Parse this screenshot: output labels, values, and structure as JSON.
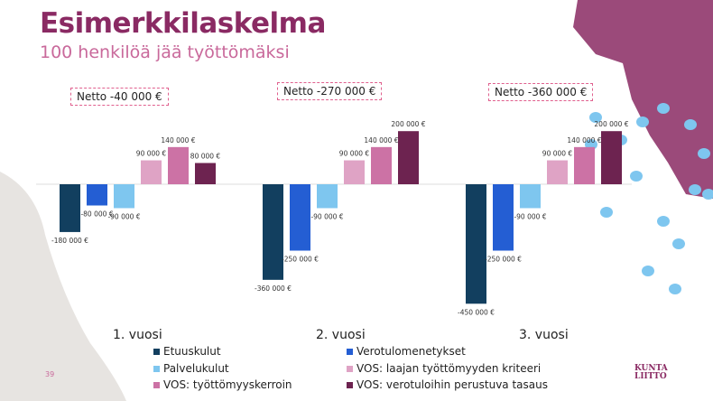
{
  "header": {
    "title": "Esimerkkilaskelma",
    "subtitle": "100 henkilöä jää työttömäksi"
  },
  "page_number": "39",
  "logo": {
    "line1": "KUNTA",
    "line2": "LIITTO"
  },
  "chart_data": {
    "type": "bar",
    "categories": [
      "1. vuosi",
      "2. vuosi",
      "3. vuosi"
    ],
    "netto": [
      "Netto -40 000 €",
      "Netto -270 000 €",
      "Netto -360 000 €"
    ],
    "series": [
      {
        "name": "Etuuskulut",
        "color": "#123f5f",
        "values": [
          -180000,
          -360000,
          -450000
        ]
      },
      {
        "name": "Verotulomenetykset",
        "color": "#245ed3",
        "values": [
          -80000,
          -250000,
          -250000
        ]
      },
      {
        "name": "Palvelukulut",
        "color": "#7ec6ef",
        "values": [
          -90000,
          -90000,
          -90000
        ]
      },
      {
        "name": "VOS: laajan työttömyyden kriteeri",
        "color": "#dfa3c5",
        "values": [
          90000,
          90000,
          90000
        ]
      },
      {
        "name": "VOS: työttömyyskerroin",
        "color": "#cc72a5",
        "values": [
          140000,
          140000,
          140000
        ]
      },
      {
        "name": "VOS: verotuloihin perustuva tasaus",
        "color": "#6d2350",
        "values": [
          80000,
          200000,
          200000
        ]
      }
    ],
    "value_labels": [
      [
        "-180 000 €",
        "-80 000 €",
        "-90 000 €",
        "90 000 €",
        "140 000 €",
        "80 000 €"
      ],
      [
        "-360 000 €",
        "-250 000 €",
        "-90 000 €",
        "90 000 €",
        "140 000 €",
        "200 000 €"
      ],
      [
        "-450 000 €",
        "-250 000 €",
        "-90 000 €",
        "90 000 €",
        "140 000 €",
        "200 000 €"
      ]
    ],
    "legend_position": "bottom"
  }
}
